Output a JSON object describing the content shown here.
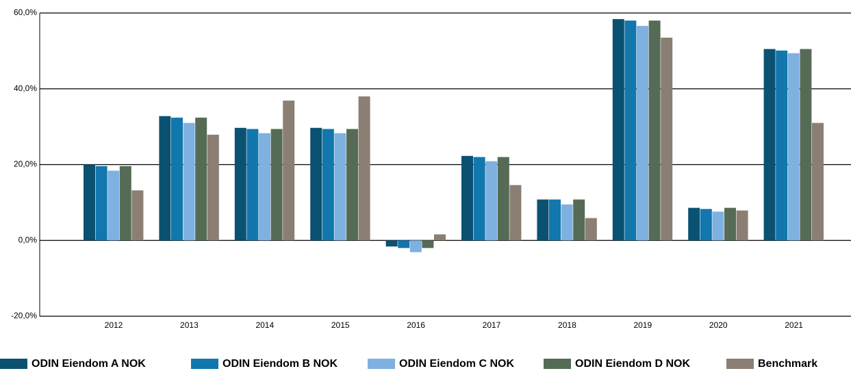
{
  "chart_data": {
    "type": "bar",
    "categories": [
      "2012",
      "2013",
      "2014",
      "2015",
      "2016",
      "2017",
      "2018",
      "2019",
      "2020",
      "2021"
    ],
    "series": [
      {
        "name": "ODIN Eiendom A NOK",
        "color": "#0b5171",
        "values": [
          20.0,
          32.8,
          29.7,
          29.7,
          -1.6,
          22.3,
          10.8,
          58.4,
          8.6,
          50.5
        ]
      },
      {
        "name": "ODIN Eiendom B NOK",
        "color": "#1177ad",
        "values": [
          19.6,
          32.4,
          29.4,
          29.4,
          -2.0,
          22.0,
          10.8,
          58.0,
          8.3,
          50.1
        ]
      },
      {
        "name": "ODIN Eiendom C NOK",
        "color": "#7eb1e0",
        "values": [
          18.4,
          31.0,
          28.3,
          28.3,
          -3.1,
          20.9,
          9.5,
          56.6,
          7.6,
          49.4
        ]
      },
      {
        "name": "ODIN Eiendom D NOK",
        "color": "#556b56",
        "values": [
          19.6,
          32.4,
          29.4,
          29.4,
          -2.0,
          22.0,
          10.8,
          58.0,
          8.6,
          50.5
        ]
      },
      {
        "name": "Benchmark",
        "color": "#8a7f72",
        "values": [
          13.2,
          27.9,
          36.9,
          38.0,
          1.6,
          14.6,
          5.9,
          53.5,
          7.9,
          31.0
        ]
      }
    ],
    "ylim": [
      -20,
      60
    ],
    "yticks": [
      {
        "value": -20,
        "label": "-20,0%"
      },
      {
        "value": 0,
        "label": "0,0%"
      },
      {
        "value": 20,
        "label": "20,0%"
      },
      {
        "value": 40,
        "label": "40,0%"
      },
      {
        "value": 60,
        "label": "60,0%"
      }
    ],
    "grid": true,
    "legend": "bottom"
  }
}
